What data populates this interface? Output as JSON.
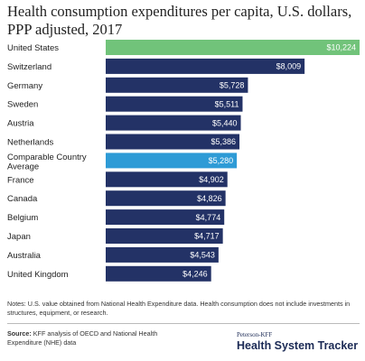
{
  "chart_data": {
    "type": "bar",
    "orientation": "horizontal",
    "title": "Health consumption expenditures per capita, U.S. dollars, PPP adjusted, 2017",
    "xlim": [
      0,
      10224
    ],
    "grid": false,
    "categories": [
      "United States",
      "Switzerland",
      "Germany",
      "Sweden",
      "Austria",
      "Netherlands",
      "Comparable Country Average",
      "France",
      "Canada",
      "Belgium",
      "Japan",
      "Australia",
      "United Kingdom"
    ],
    "values": [
      10224,
      8009,
      5728,
      5511,
      5440,
      5386,
      5280,
      4902,
      4826,
      4774,
      4717,
      4543,
      4246
    ],
    "value_labels": [
      "$10,224",
      "$8,009",
      "$5,728",
      "$5,511",
      "$5,440",
      "$5,386",
      "$5,280",
      "$4,902",
      "$4,826",
      "$4,774",
      "$4,717",
      "$4,543",
      "$4,246"
    ],
    "bar_colors": [
      "#71c37a",
      "#233266",
      "#233266",
      "#233266",
      "#233266",
      "#233266",
      "#2e9bd6",
      "#233266",
      "#233266",
      "#233266",
      "#233266",
      "#233266",
      "#233266"
    ]
  },
  "notes": "Notes: U.S. value obtained from National Health Expenditure data. Health consumption does not include investments in structures, equipment, or research.",
  "source_label": "Source:",
  "source_text": "KFF analysis of OECD and National Health Expenditure (NHE) data",
  "brand_small": "Peterson-KFF",
  "brand_main": "Health System Tracker"
}
